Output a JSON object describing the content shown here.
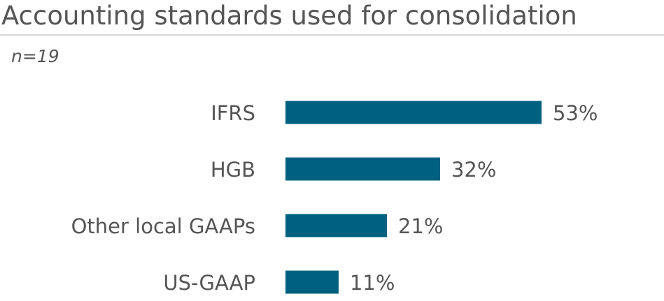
{
  "chart_data": {
    "type": "bar",
    "orientation": "horizontal",
    "title": "Accounting standards used for consolidation",
    "subtitle": "n=19",
    "categories": [
      "IFRS",
      "HGB",
      "Other local GAAPs",
      "US-GAAP"
    ],
    "values": [
      53,
      32,
      21,
      11
    ],
    "value_labels": [
      "53%",
      "32%",
      "21%",
      "11%"
    ],
    "xlim": [
      0,
      100
    ],
    "grid": false,
    "legend": "none",
    "bar_color": "#00607f"
  }
}
